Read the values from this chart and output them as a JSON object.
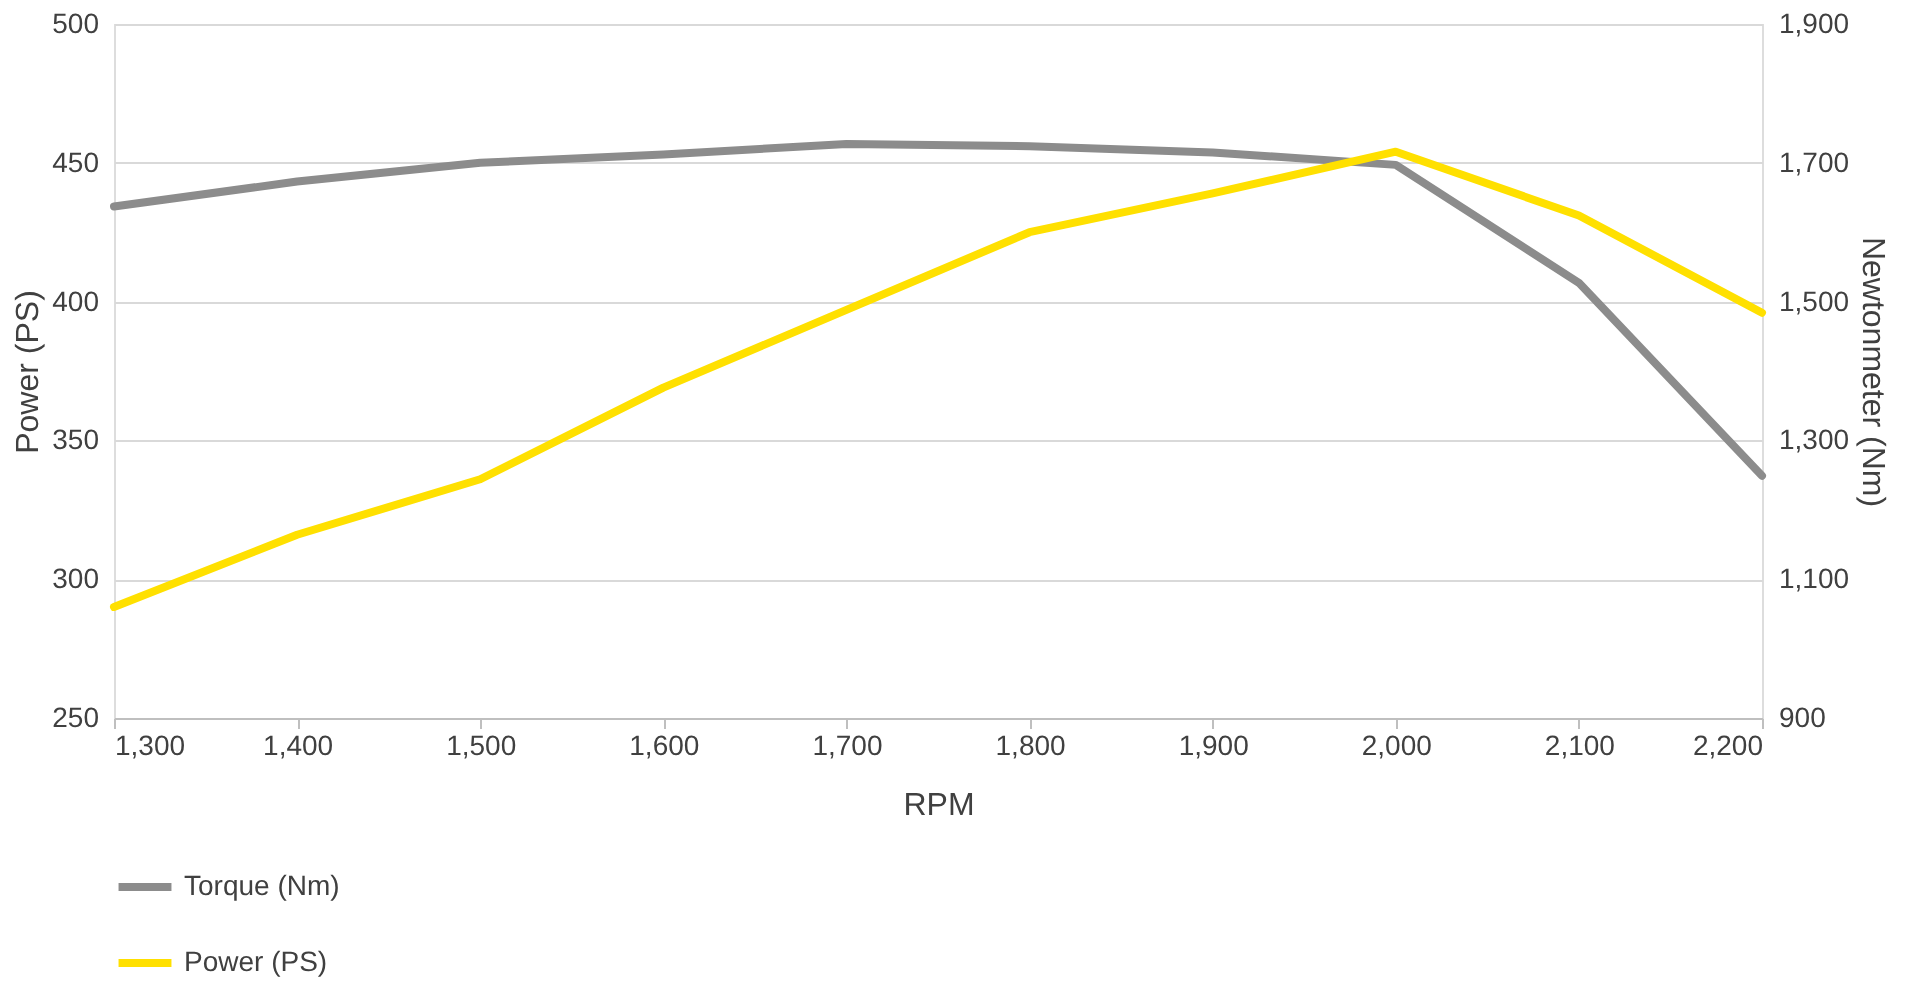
{
  "chart_data": {
    "type": "line",
    "xlabel": "RPM",
    "ylabel": "Power (PS)",
    "y2label": "Newtonmeter (Nm)",
    "x": [
      1300,
      1400,
      1500,
      1600,
      1700,
      1800,
      1900,
      2000,
      2100,
      2200
    ],
    "series": [
      {
        "name": "Torque (Nm)",
        "color": "#8c8c8c",
        "axis": "y2",
        "values": [
          1637,
          1673,
          1700,
          1712,
          1727,
          1724,
          1715,
          1697,
          1527,
          1249
        ]
      },
      {
        "name": "Power (PS)",
        "color": "#ffe000",
        "values": [
          290,
          316,
          336,
          369,
          397,
          425,
          439,
          454,
          431,
          396
        ]
      }
    ],
    "xlim": [
      1300,
      2200
    ],
    "xticks": [
      {
        "value": 1300,
        "label": "1,300"
      },
      {
        "value": 1400,
        "label": "1,400"
      },
      {
        "value": 1500,
        "label": "1,500"
      },
      {
        "value": 1600,
        "label": "1,600"
      },
      {
        "value": 1700,
        "label": "1,700"
      },
      {
        "value": 1800,
        "label": "1,800"
      },
      {
        "value": 1900,
        "label": "1,900"
      },
      {
        "value": 2000,
        "label": "2,000"
      },
      {
        "value": 2100,
        "label": "2,100"
      },
      {
        "value": 2200,
        "label": "2,200"
      }
    ],
    "ylim": [
      250,
      500
    ],
    "yticks": [
      250,
      300,
      350,
      400,
      450,
      500
    ],
    "y2lim": [
      900,
      1900
    ],
    "y2ticks": [
      900,
      {
        "value": 1100,
        "label": "1,100"
      },
      {
        "value": 1300,
        "label": "1,300"
      },
      {
        "value": 1500,
        "label": "1,500"
      },
      {
        "value": 1700,
        "label": "1,700"
      },
      {
        "value": 1900,
        "label": "1,900"
      }
    ],
    "grid": "y",
    "legend": "bottom left",
    "marker": "none",
    "line_style": "solid"
  }
}
